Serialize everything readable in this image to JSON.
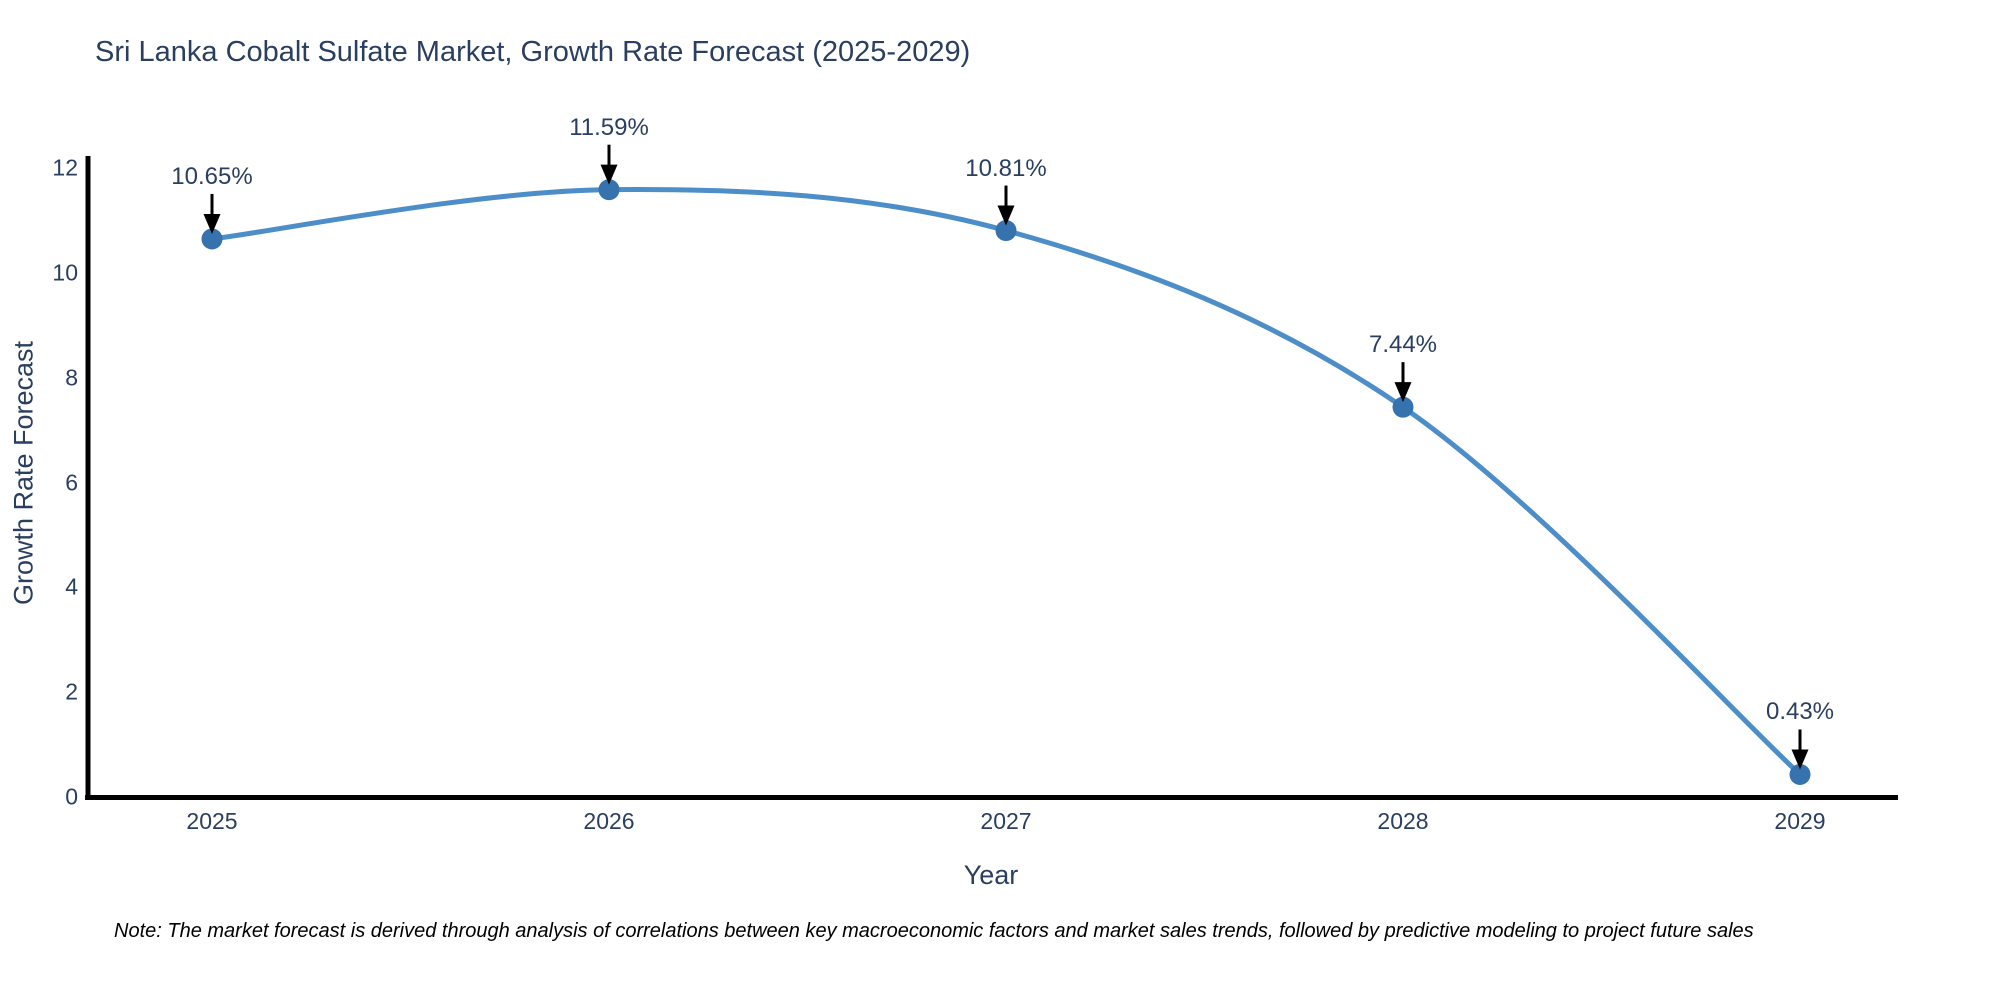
{
  "chart_data": {
    "type": "line",
    "title": "Sri Lanka Cobalt Sulfate Market, Growth Rate Forecast (2025-2029)",
    "xlabel": "Year",
    "ylabel": "Growth Rate Forecast",
    "x": [
      "2025",
      "2026",
      "2027",
      "2028",
      "2029"
    ],
    "y": [
      10.65,
      11.59,
      10.81,
      7.44,
      0.43
    ],
    "point_labels": [
      "10.65%",
      "11.59%",
      "10.81%",
      "7.44%",
      "0.43%"
    ],
    "yticks": [
      0,
      2,
      4,
      6,
      8,
      10,
      12
    ],
    "ylim": [
      0,
      12.3
    ],
    "line_shape": "spline",
    "grid": false,
    "legend_position": "none",
    "line_color": "#4d8ec9",
    "marker_color": "#3673ae",
    "axis_color": "#000000",
    "arrow_color": "#000000",
    "text_color": "#2a3f5f"
  },
  "note": {
    "text": "Note: The market forecast is derived through analysis of correlations between key macroeconomic factors and market sales trends, followed by predictive modeling to project future sales"
  }
}
